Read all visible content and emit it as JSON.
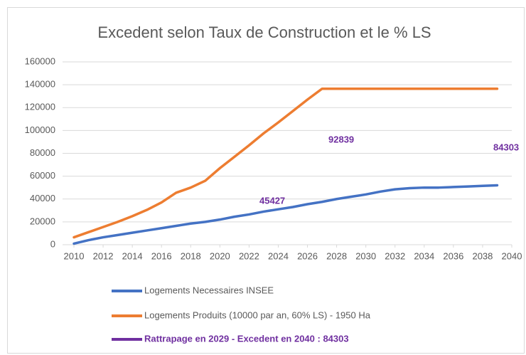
{
  "chart_data": {
    "type": "line",
    "title": "Excedent selon Taux de Construction et le % LS",
    "x": [
      2010,
      2011,
      2012,
      2013,
      2014,
      2015,
      2016,
      2017,
      2018,
      2019,
      2020,
      2021,
      2022,
      2023,
      2024,
      2025,
      2026,
      2027,
      2028,
      2029,
      2030,
      2031,
      2032,
      2033,
      2034,
      2035,
      2036,
      2037,
      2038,
      2039
    ],
    "series": [
      {
        "name": "Logements Necessaires INSEE",
        "color": "#4472c4",
        "values": [
          1000,
          4000,
          6500,
          8500,
          10500,
          12500,
          14500,
          16500,
          18500,
          20000,
          22000,
          24500,
          26500,
          29000,
          31000,
          33000,
          35500,
          37500,
          40000,
          42000,
          44000,
          46500,
          48500,
          49500,
          50000,
          50000,
          50500,
          51000,
          51500,
          52000
        ]
      },
      {
        "name": "Logements Produits (10000 par an, 60% LS) - 1950 Ha",
        "color": "#ed7d31",
        "values": [
          6500,
          11000,
          15500,
          20000,
          25000,
          30500,
          37000,
          45500,
          50000,
          56000,
          67000,
          77000,
          87000,
          97500,
          107000,
          117000,
          127000,
          136500,
          136500,
          136500,
          136500,
          136500,
          136500,
          136500,
          136500,
          136500,
          136500,
          136500,
          136500,
          136500
        ]
      },
      {
        "name": "Rattrapage en 2029 - Excedent en 2040 : 84303",
        "color": "#7030a0",
        "values": [
          null,
          null,
          null,
          null,
          null,
          null,
          null,
          null,
          null,
          null,
          null,
          null,
          null,
          null,
          null,
          null,
          null,
          null,
          null,
          null,
          null,
          null,
          null,
          null,
          null,
          null,
          null,
          null,
          null,
          null
        ]
      }
    ],
    "annotations": [
      "45427",
      "92839",
      "84303"
    ],
    "xlim": [
      2010,
      2040
    ],
    "xticks": [
      2010,
      2012,
      2014,
      2016,
      2018,
      2020,
      2022,
      2024,
      2026,
      2028,
      2030,
      2032,
      2034,
      2036,
      2038,
      2040
    ],
    "ylim": [
      0,
      160000
    ],
    "yticks": [
      0,
      20000,
      40000,
      60000,
      80000,
      100000,
      120000,
      140000,
      160000
    ],
    "grid": true
  }
}
